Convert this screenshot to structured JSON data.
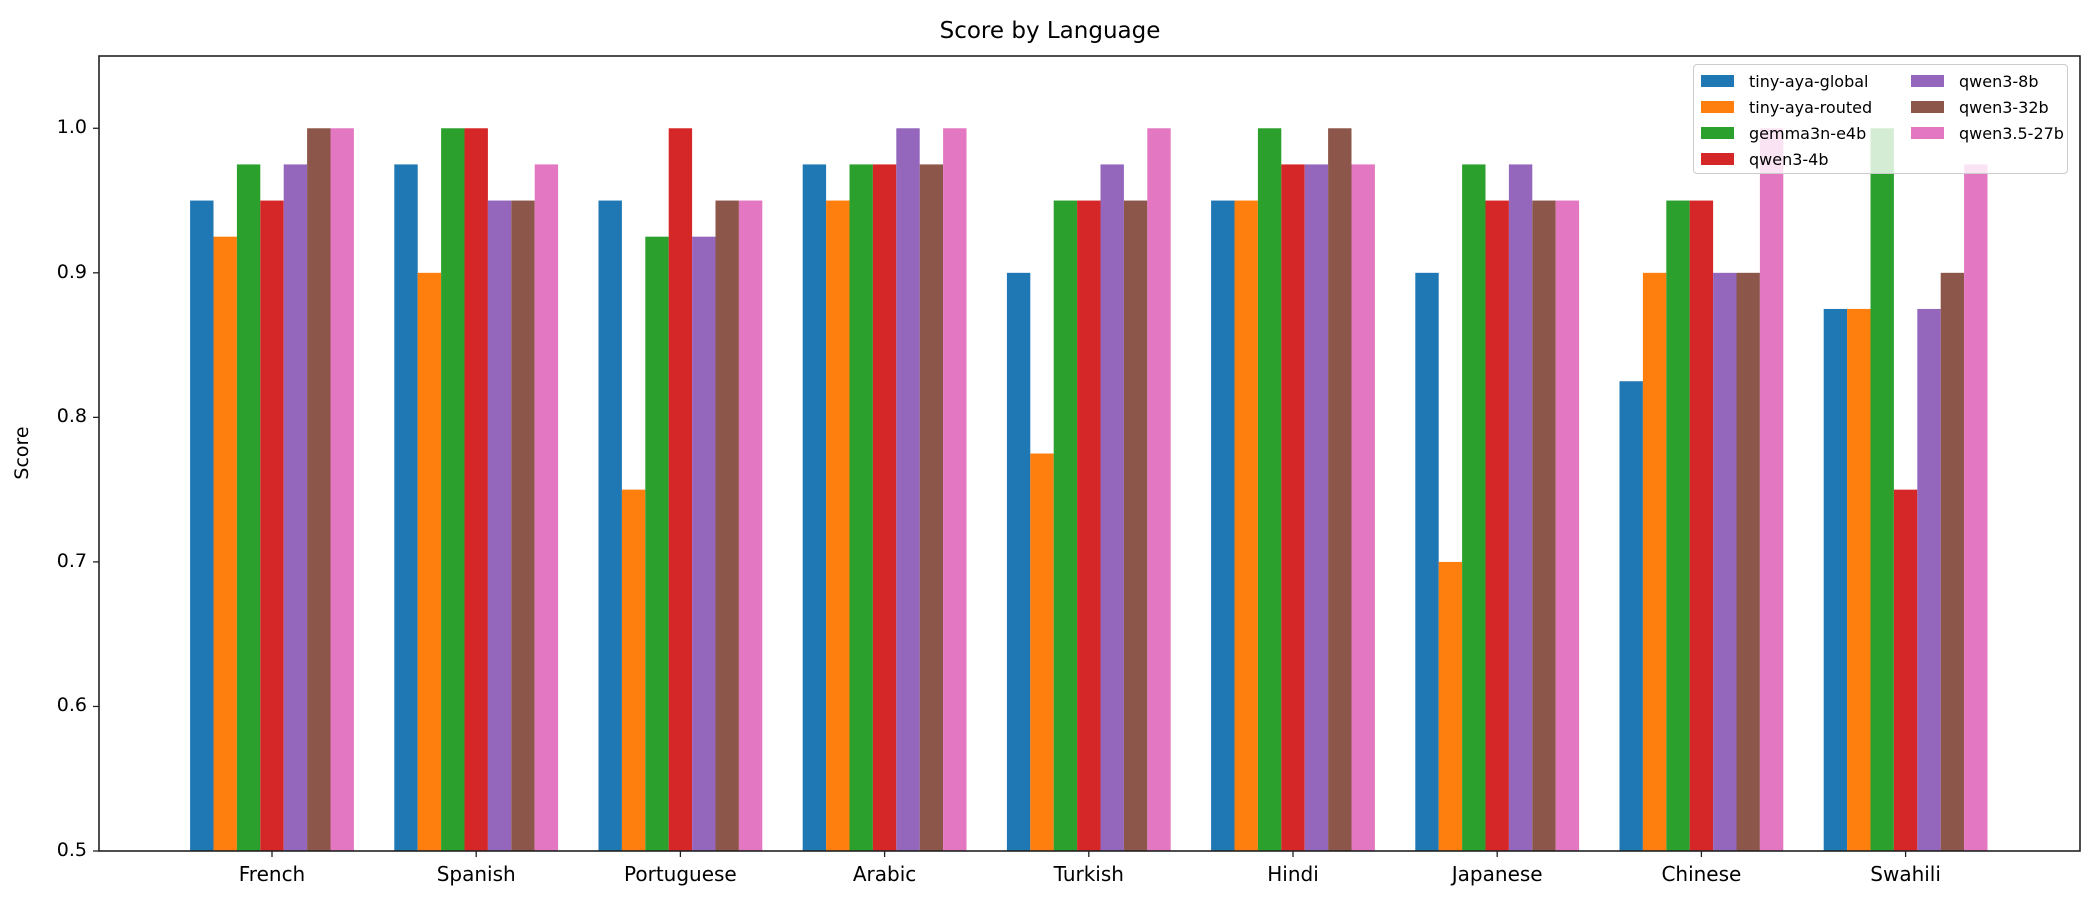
{
  "chart_data": {
    "type": "bar",
    "title": "Score by Language",
    "xlabel": "",
    "ylabel": "Score",
    "ylim": [
      0.5,
      1.05
    ],
    "yticks": [
      "0.5",
      "0.6",
      "0.7",
      "0.8",
      "0.9",
      "1.0"
    ],
    "grid": false,
    "legend_position": "upper right",
    "categories": [
      "French",
      "Spanish",
      "Portuguese",
      "Arabic",
      "Turkish",
      "Hindi",
      "Japanese",
      "Chinese",
      "Swahili"
    ],
    "series": [
      {
        "name": "tiny-aya-global",
        "color": "#1f77b4",
        "values": [
          0.95,
          0.975,
          0.95,
          0.975,
          0.9,
          0.95,
          0.9,
          0.825,
          0.875
        ]
      },
      {
        "name": "tiny-aya-routed",
        "color": "#ff7f0e",
        "values": [
          0.925,
          0.9,
          0.75,
          0.95,
          0.775,
          0.95,
          0.7,
          0.9,
          0.875
        ]
      },
      {
        "name": "gemma3n-e4b",
        "color": "#2ca02c",
        "values": [
          0.975,
          1.0,
          0.925,
          0.975,
          0.95,
          1.0,
          0.975,
          0.95,
          1.0
        ]
      },
      {
        "name": "qwen3-4b",
        "color": "#d62728",
        "values": [
          0.95,
          1.0,
          1.0,
          0.975,
          0.95,
          0.975,
          0.95,
          0.95,
          0.75
        ]
      },
      {
        "name": "qwen3-8b",
        "color": "#9467bd",
        "values": [
          0.975,
          0.95,
          0.925,
          1.0,
          0.975,
          0.975,
          0.975,
          0.9,
          0.875
        ]
      },
      {
        "name": "qwen3-32b",
        "color": "#8c564b",
        "values": [
          1.0,
          0.95,
          0.95,
          0.975,
          0.95,
          1.0,
          0.95,
          0.9,
          0.9
        ]
      },
      {
        "name": "qwen3.5-27b",
        "color": "#e377c2",
        "values": [
          1.0,
          0.975,
          0.95,
          1.0,
          1.0,
          0.975,
          0.95,
          1.0,
          0.975
        ]
      }
    ]
  }
}
